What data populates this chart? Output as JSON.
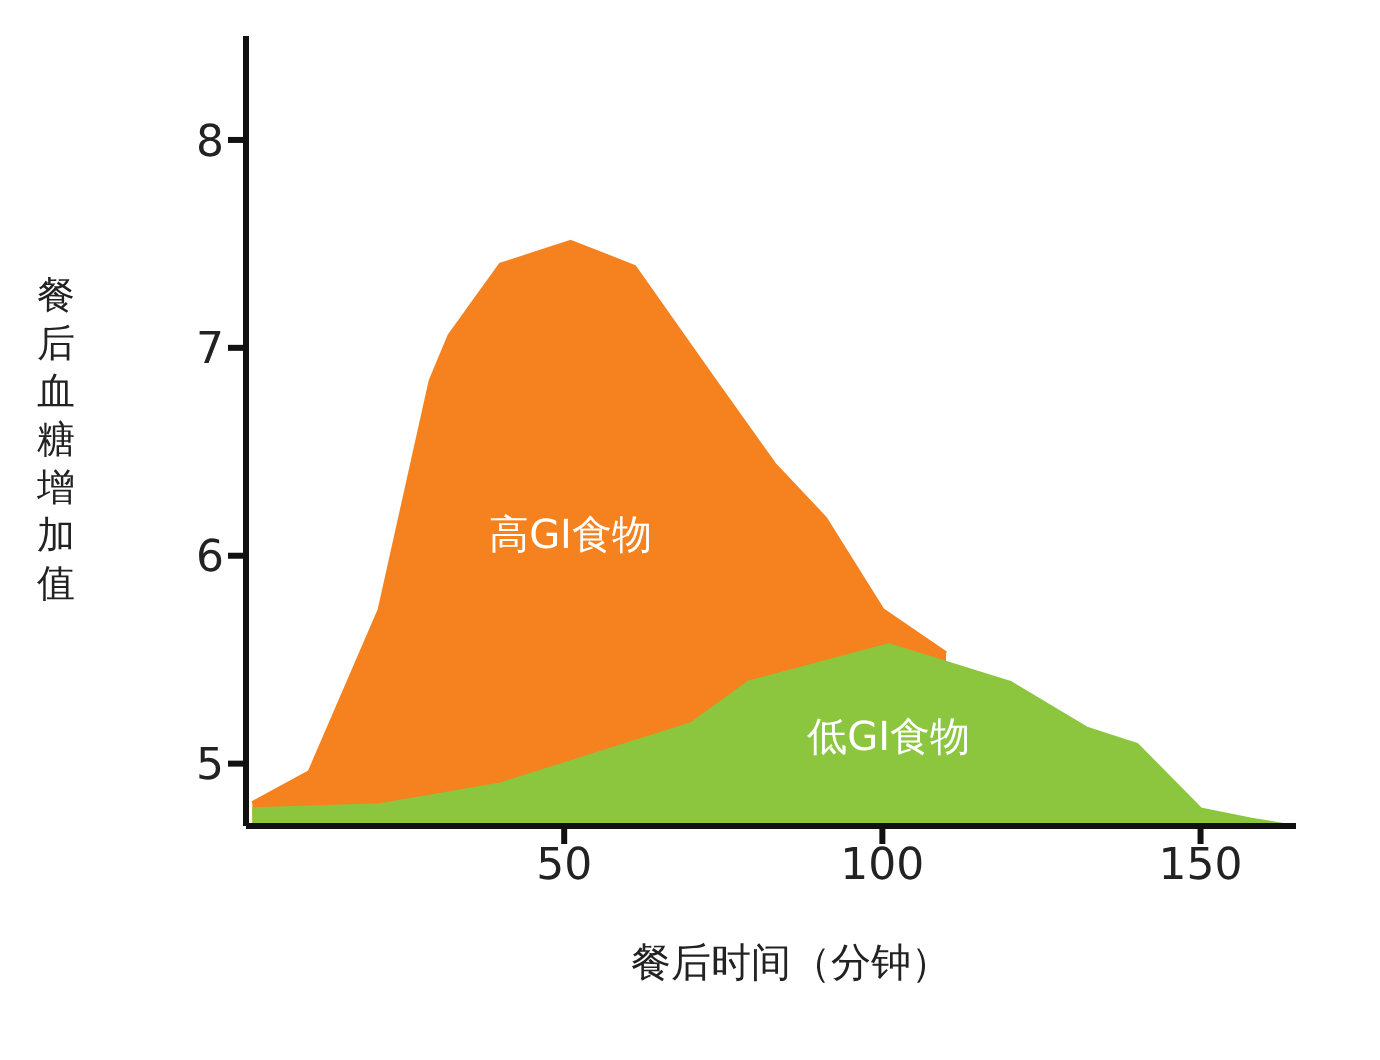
{
  "chart_data": {
    "type": "area",
    "xlabel": "餐后时间（分钟）",
    "ylabel": "餐后血糖增加值",
    "xlim": [
      0,
      165
    ],
    "xticks": [
      50,
      100,
      150
    ],
    "ylim": [
      4.7,
      8.5
    ],
    "yticks": [
      5,
      6,
      7,
      8
    ],
    "grid": false,
    "legend": false,
    "series": [
      {
        "name": "高GI食物",
        "color": "#f5821f",
        "x": [
          1,
          10,
          21,
          29,
          32,
          40,
          51,
          61,
          73,
          83,
          91,
          100,
          110
        ],
        "values": [
          4.81,
          4.96,
          5.74,
          6.84,
          7.06,
          7.4,
          7.51,
          7.39,
          6.87,
          6.44,
          6.18,
          5.74,
          5.53
        ]
      },
      {
        "name": "低GI食物",
        "color": "#8cc63f",
        "x": [
          1,
          21,
          40,
          70,
          79,
          101,
          120,
          132,
          140,
          150,
          158,
          164
        ],
        "values": [
          4.78,
          4.8,
          4.9,
          5.19,
          5.39,
          5.57,
          5.39,
          5.17,
          5.09,
          4.78,
          4.73,
          4.7
        ]
      }
    ]
  }
}
